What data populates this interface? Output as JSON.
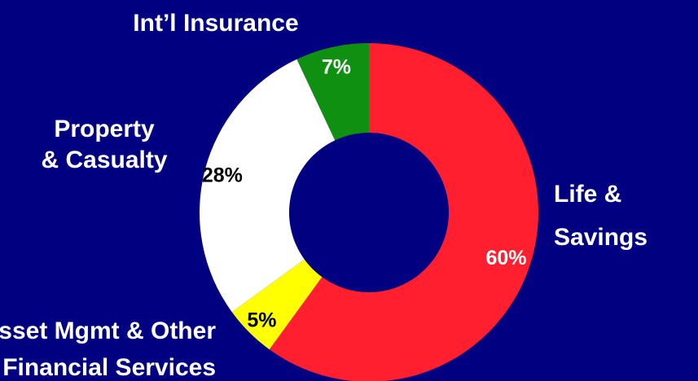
{
  "chart_data": {
    "type": "pie",
    "categories": [
      "Life & Savings",
      "Asset Mgmt & Other Financial Services",
      "Property & Casualty",
      "Int’l Insurance"
    ],
    "values": [
      60,
      5,
      28,
      7
    ],
    "value_labels": [
      "60%",
      "5%",
      "28%",
      "7%"
    ],
    "colors": [
      "#ff1f2e",
      "#ffff00",
      "#ffffff",
      "#109010"
    ],
    "value_label_colors": [
      "#ffffff",
      "#000000",
      "#000000",
      "#ffffff"
    ],
    "background": "#000080",
    "legend": "none"
  }
}
